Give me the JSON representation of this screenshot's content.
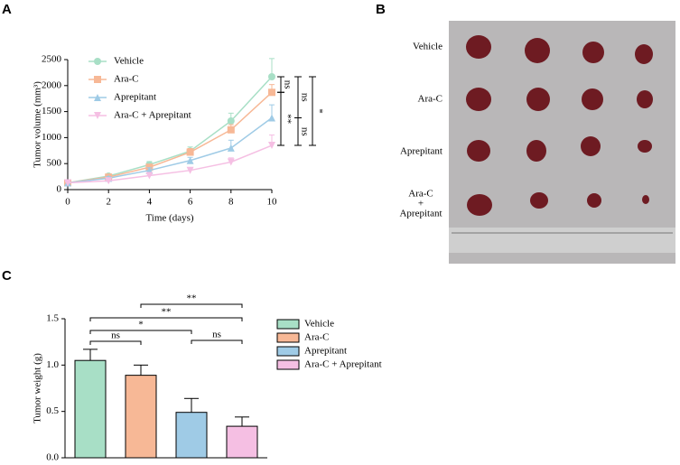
{
  "chart_data": [
    {
      "type": "line",
      "panel": "A",
      "xlabel": "Time (days)",
      "ylabel": "Tumor volume (mm³)",
      "x": [
        0,
        2,
        4,
        6,
        8,
        10
      ],
      "xlim": [
        0,
        10
      ],
      "xticks": [
        0,
        2,
        4,
        6,
        8,
        10
      ],
      "ylim": [
        0,
        2500
      ],
      "yticks": [
        0,
        500,
        1000,
        1500,
        2000,
        2500
      ],
      "series": [
        {
          "name": "Vehicle",
          "color": "#a8dfc6",
          "values": [
            130,
            260,
            480,
            740,
            1320,
            2170
          ],
          "errors": [
            20,
            30,
            60,
            80,
            150,
            350
          ]
        },
        {
          "name": "Ara-C",
          "color": "#f7b896",
          "values": [
            130,
            240,
            430,
            720,
            1150,
            1870
          ],
          "errors": [
            20,
            30,
            50,
            70,
            100,
            150
          ]
        },
        {
          "name": "Aprepitant",
          "color": "#9fcbe6",
          "values": [
            130,
            220,
            370,
            560,
            800,
            1380
          ],
          "errors": [
            20,
            30,
            50,
            60,
            150,
            250
          ]
        },
        {
          "name": "Ara-C + Aprepitant",
          "color": "#f5bfe3",
          "values": [
            130,
            170,
            270,
            370,
            530,
            850
          ],
          "errors": [
            20,
            20,
            30,
            40,
            80,
            200
          ]
        }
      ],
      "annotations": [
        "ns",
        "**",
        "ns",
        "ns",
        "*"
      ]
    },
    {
      "type": "bar",
      "panel": "C",
      "ylabel": "Tumor weight (g)",
      "ylim": [
        0,
        1.5
      ],
      "yticks": [
        {
          "value": 0,
          "label": "0.0"
        },
        0.5,
        {
          "value": 1,
          "label": "1.0"
        },
        1.5
      ],
      "series": [
        {
          "name": "Vehicle",
          "color": "#a8dfc6",
          "values": [
            1.05
          ],
          "errors": [
            0.12
          ]
        },
        {
          "name": "Ara-C",
          "color": "#f7b896",
          "values": [
            0.89
          ],
          "errors": [
            0.11
          ]
        },
        {
          "name": "Aprepitant",
          "color": "#9fcbe6",
          "values": [
            0.49
          ],
          "errors": [
            0.15
          ]
        },
        {
          "name": "Ara-C + Aprepitant",
          "color": "#f5bfe3",
          "values": [
            0.34
          ],
          "errors": [
            0.1
          ]
        }
      ],
      "annotations": [
        "ns",
        "*",
        "ns",
        "**",
        "**"
      ]
    }
  ],
  "photo": {
    "panel": "B",
    "labels": [
      "Vehicle",
      "Ara-C",
      "Aprepitant",
      [
        "Ara-C",
        "+",
        "Aprepitant"
      ]
    ]
  }
}
